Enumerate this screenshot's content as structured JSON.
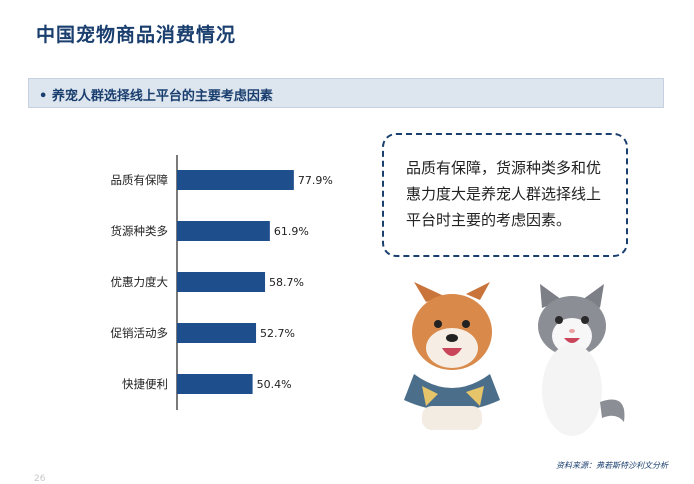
{
  "header": {
    "title": "中国宠物商品消费情况"
  },
  "section": {
    "bullet": "•",
    "title": "养宠人群选择线上平台的主要考虑因素"
  },
  "chart_data": {
    "type": "bar",
    "orientation": "horizontal",
    "categories": [
      "品质有保障",
      "货源种类多",
      "优惠力度大",
      "促销活动多",
      "快捷便利"
    ],
    "values": [
      77.9,
      61.9,
      58.7,
      52.7,
      50.4
    ],
    "value_labels": [
      "77.9%",
      "61.9%",
      "58.7%",
      "52.7%",
      "50.4%"
    ],
    "unit": "%",
    "xlim": [
      0,
      100
    ],
    "bar_color": "#1f4e8c",
    "grid": false
  },
  "callout": {
    "text": "品质有保障，货源种类多和优惠力度大是养宠人群选择线上平台时主要的考虑因素。"
  },
  "footer": {
    "source": "资料来源：弗若斯特沙利文分析",
    "page_number": "26"
  },
  "colors": {
    "title": "#1a3f6f",
    "section_bg": "#dde5ef",
    "accent": "#1f4e8c"
  }
}
